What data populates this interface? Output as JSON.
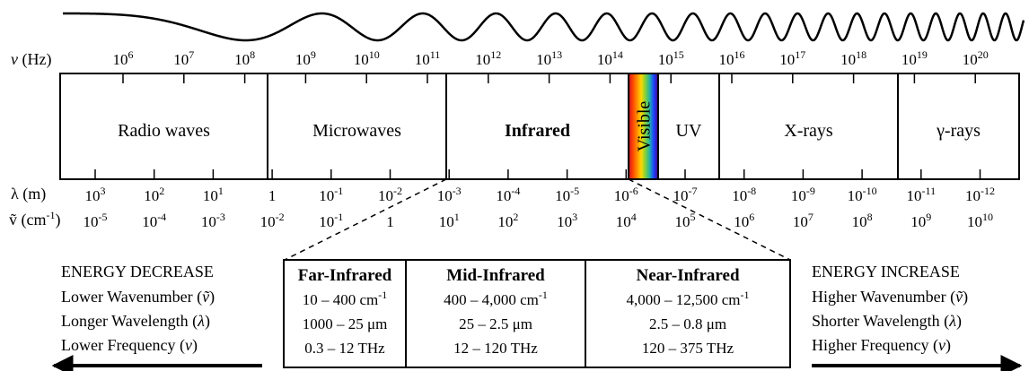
{
  "frequency_axis": {
    "name": "v (Hz)",
    "ticks": [
      "10^6",
      "10^7",
      "10^8",
      "10^9",
      "10^10",
      "10^11",
      "10^12",
      "10^13",
      "10^14",
      "10^15",
      "10^16",
      "10^17",
      "10^18",
      "10^19",
      "10^20"
    ]
  },
  "wavelength_axis": {
    "name": "λ (m)",
    "ticks": [
      "10^3",
      "10^2",
      "10^1",
      "1",
      "10^-1",
      "10^-2",
      "10^-3",
      "10^-4",
      "10^-5",
      "10^-6",
      "10^-7",
      "10^-8",
      "10^-9",
      "10^-10",
      "10^-11",
      "10^-12"
    ]
  },
  "wavenumber_axis": {
    "name": "ṽ (cm^-1)",
    "ticks": [
      "10^-5",
      "10^-4",
      "10^-3",
      "10^-2",
      "10^-1",
      "1",
      "10^1",
      "10^2",
      "10^3",
      "10^4",
      "10^5",
      "10^6",
      "10^7",
      "10^8",
      "10^9",
      "10^10"
    ]
  },
  "bands": [
    {
      "label": "Radio waves",
      "bold": false
    },
    {
      "label": "Microwaves",
      "bold": false
    },
    {
      "label": "Infrared",
      "bold": true
    },
    {
      "label": "Visible",
      "bold": false,
      "vertical": true
    },
    {
      "label": "UV",
      "bold": false
    },
    {
      "label": "X-rays",
      "bold": false
    },
    {
      "label": "γ-rays",
      "bold": false
    }
  ],
  "visible_spectrum_colors": [
    "#c8102e",
    "#ff4500",
    "#ff8c00",
    "#ffd700",
    "#7fd13b",
    "#20b2aa",
    "#1e40ff",
    "#4b0082"
  ],
  "energy_decrease": {
    "title": "ENERGY DECREASE",
    "lines": [
      "Lower Wavenumber (ṽ)",
      "Longer Wavelength (λ)",
      "Lower Frequency (v)"
    ]
  },
  "energy_increase": {
    "title": "ENERGY INCREASE",
    "lines": [
      "Higher Wavenumber (ṽ)",
      "Shorter Wavelength (λ)",
      "Higher Frequency (v)"
    ]
  },
  "infrared_table": {
    "columns": [
      {
        "header": "Far-Infrared",
        "rows": [
          "10 – 400 cm^-1",
          "1000 – 25 μm",
          "0.3 – 12 THz"
        ]
      },
      {
        "header": "Mid-Infrared",
        "rows": [
          "400 – 4,000 cm^-1",
          "25 – 2.5 μm",
          "12 – 120 THz"
        ]
      },
      {
        "header": "Near-Infrared",
        "rows": [
          "4,000 – 12,500 cm^-1",
          "2.5 – 0.8 μm",
          "120 – 375 THz"
        ]
      }
    ]
  }
}
